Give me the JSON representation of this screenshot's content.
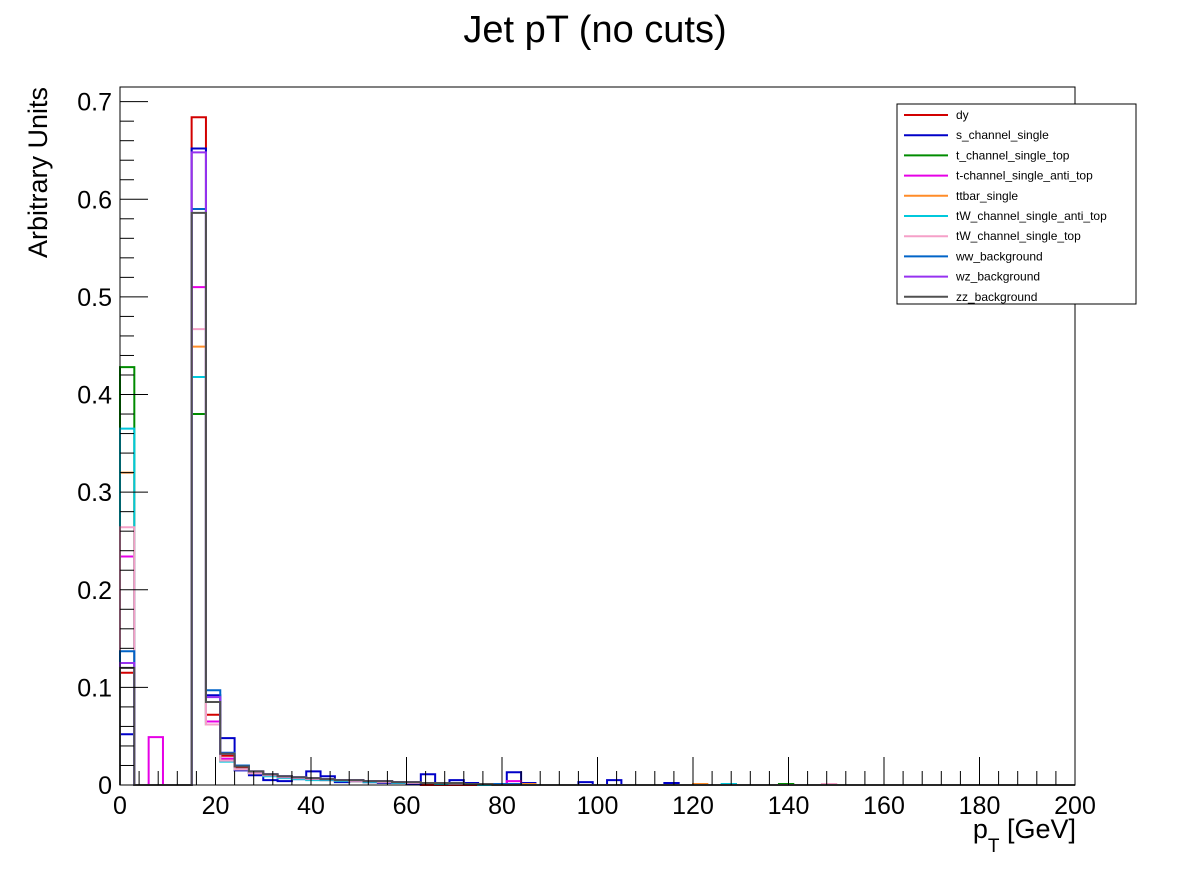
{
  "chart_data": {
    "type": "histogram",
    "title": "Jet pT (no cuts)",
    "ylabel": "Arbitrary Units",
    "xlabel": {
      "main": "p",
      "sub": "T",
      "unit": " [GeV]"
    },
    "xlim": [
      0,
      200
    ],
    "ylim": [
      0,
      0.715
    ],
    "bin_width": 3,
    "x_ticks": [
      0,
      20,
      40,
      60,
      80,
      100,
      120,
      140,
      160,
      180,
      200
    ],
    "x_tick_labels": [
      "0",
      "20",
      "40",
      "60",
      "80",
      "100",
      "120",
      "140",
      "160",
      "180",
      "200"
    ],
    "y_ticks": [
      0,
      0.1,
      0.2,
      0.3,
      0.4,
      0.5,
      0.6,
      0.7
    ],
    "y_tick_labels": [
      "0",
      "0.1",
      "0.2",
      "0.3",
      "0.4",
      "0.5",
      "0.6",
      "0.7"
    ],
    "legend_position": "top-right",
    "series": [
      {
        "name": "dy",
        "color": "#d20000",
        "bins": [
          [
            0,
            0.115
          ],
          [
            15,
            0.684
          ],
          [
            18,
            0.072
          ],
          [
            21,
            0.03
          ],
          [
            24,
            0.018
          ],
          [
            27,
            0.013
          ],
          [
            30,
            0.01
          ],
          [
            33,
            0.008
          ],
          [
            36,
            0.007
          ],
          [
            39,
            0.006
          ],
          [
            42,
            0.005
          ],
          [
            45,
            0.004
          ],
          [
            48,
            0.004
          ],
          [
            51,
            0.003
          ],
          [
            54,
            0.003
          ],
          [
            57,
            0.002
          ],
          [
            60,
            0.002
          ]
        ]
      },
      {
        "name": "s_channel_single",
        "color": "#0000c8",
        "bins": [
          [
            0,
            0.052
          ],
          [
            15,
            0.652
          ],
          [
            18,
            0.092
          ],
          [
            21,
            0.048
          ],
          [
            24,
            0.015
          ],
          [
            27,
            0.01
          ],
          [
            30,
            0.005
          ],
          [
            33,
            0.004
          ],
          [
            36,
            0.006
          ],
          [
            39,
            0.014
          ],
          [
            42,
            0.009
          ],
          [
            45,
            0.003
          ],
          [
            48,
            0.004
          ],
          [
            51,
            0.003
          ],
          [
            54,
            0.002
          ],
          [
            57,
            0.002
          ],
          [
            60,
            0.001
          ],
          [
            63,
            0.011
          ],
          [
            66,
            0.002
          ],
          [
            69,
            0.005
          ],
          [
            72,
            0.002
          ],
          [
            75,
            0.001
          ],
          [
            78,
            0.001
          ],
          [
            81,
            0.013
          ],
          [
            84,
            0.002
          ],
          [
            96,
            0.003
          ],
          [
            102,
            0.005
          ],
          [
            114,
            0.002
          ]
        ]
      },
      {
        "name": "t_channel_single_top",
        "color": "#008c00",
        "bins": [
          [
            0,
            0.428
          ],
          [
            15,
            0.38
          ],
          [
            18,
            0.062
          ],
          [
            21,
            0.025
          ],
          [
            24,
            0.016
          ],
          [
            27,
            0.012
          ],
          [
            30,
            0.01
          ],
          [
            33,
            0.008
          ],
          [
            36,
            0.007
          ],
          [
            39,
            0.006
          ],
          [
            42,
            0.006
          ],
          [
            45,
            0.005
          ],
          [
            48,
            0.004
          ],
          [
            51,
            0.004
          ],
          [
            54,
            0.003
          ],
          [
            57,
            0.003
          ],
          [
            60,
            0.002
          ],
          [
            63,
            0.002
          ],
          [
            66,
            0.002
          ],
          [
            69,
            0.001
          ],
          [
            72,
            0.001
          ],
          [
            75,
            0.001
          ],
          [
            138,
            0.001
          ]
        ]
      },
      {
        "name": "t-channel_single_anti_top",
        "color": "#e600e6",
        "bins": [
          [
            0,
            0.234
          ],
          [
            6,
            0.049
          ],
          [
            15,
            0.51
          ],
          [
            18,
            0.065
          ],
          [
            21,
            0.027
          ],
          [
            24,
            0.016
          ],
          [
            27,
            0.012
          ],
          [
            30,
            0.01
          ],
          [
            33,
            0.008
          ],
          [
            36,
            0.007
          ],
          [
            39,
            0.006
          ],
          [
            42,
            0.006
          ],
          [
            45,
            0.005
          ],
          [
            48,
            0.004
          ],
          [
            51,
            0.004
          ],
          [
            54,
            0.003
          ],
          [
            57,
            0.003
          ],
          [
            60,
            0.002
          ],
          [
            63,
            0.002
          ],
          [
            66,
            0.002
          ],
          [
            69,
            0.001
          ],
          [
            72,
            0.001
          ],
          [
            75,
            0.001
          ],
          [
            81,
            0.004
          ]
        ]
      },
      {
        "name": "ttbar_single",
        "color": "#ff8c28",
        "bins": [
          [
            0,
            0.32
          ],
          [
            15,
            0.449
          ],
          [
            18,
            0.062
          ],
          [
            21,
            0.025
          ],
          [
            24,
            0.016
          ],
          [
            27,
            0.012
          ],
          [
            30,
            0.01
          ],
          [
            33,
            0.008
          ],
          [
            36,
            0.007
          ],
          [
            39,
            0.006
          ],
          [
            42,
            0.006
          ],
          [
            45,
            0.005
          ],
          [
            48,
            0.004
          ],
          [
            51,
            0.004
          ],
          [
            54,
            0.003
          ],
          [
            57,
            0.003
          ],
          [
            60,
            0.002
          ],
          [
            63,
            0.002
          ],
          [
            66,
            0.002
          ],
          [
            69,
            0.001
          ],
          [
            72,
            0.001
          ],
          [
            75,
            0.001
          ],
          [
            84,
            0.001
          ],
          [
            120,
            0.001
          ]
        ]
      },
      {
        "name": "tW_channel_single_anti_top",
        "color": "#00c8dc",
        "bins": [
          [
            0,
            0.365
          ],
          [
            15,
            0.418
          ],
          [
            18,
            0.062
          ],
          [
            21,
            0.024
          ],
          [
            24,
            0.016
          ],
          [
            27,
            0.012
          ],
          [
            30,
            0.009
          ],
          [
            33,
            0.007
          ],
          [
            36,
            0.006
          ],
          [
            39,
            0.005
          ],
          [
            42,
            0.005
          ],
          [
            45,
            0.004
          ],
          [
            48,
            0.004
          ],
          [
            51,
            0.003
          ],
          [
            54,
            0.003
          ],
          [
            57,
            0.002
          ],
          [
            60,
            0.002
          ],
          [
            63,
            0.002
          ],
          [
            66,
            0.001
          ],
          [
            69,
            0.001
          ],
          [
            72,
            0.001
          ],
          [
            126,
            0.001
          ]
        ]
      },
      {
        "name": "tW_channel_single_top",
        "color": "#f5a0c8",
        "bins": [
          [
            0,
            0.264
          ],
          [
            15,
            0.467
          ],
          [
            18,
            0.062
          ],
          [
            21,
            0.025
          ],
          [
            24,
            0.016
          ],
          [
            27,
            0.012
          ],
          [
            30,
            0.01
          ],
          [
            33,
            0.008
          ],
          [
            36,
            0.007
          ],
          [
            39,
            0.006
          ],
          [
            42,
            0.006
          ],
          [
            45,
            0.005
          ],
          [
            48,
            0.004
          ],
          [
            51,
            0.004
          ],
          [
            54,
            0.003
          ],
          [
            57,
            0.003
          ],
          [
            60,
            0.002
          ],
          [
            63,
            0.002
          ],
          [
            66,
            0.002
          ],
          [
            69,
            0.001
          ],
          [
            72,
            0.001
          ],
          [
            75,
            0.001
          ],
          [
            147,
            0.001
          ]
        ]
      },
      {
        "name": "ww_background",
        "color": "#0064c8",
        "bins": [
          [
            0,
            0.137
          ],
          [
            15,
            0.59
          ],
          [
            18,
            0.097
          ],
          [
            21,
            0.033
          ],
          [
            24,
            0.02
          ],
          [
            27,
            0.014
          ],
          [
            30,
            0.011
          ],
          [
            33,
            0.009
          ],
          [
            36,
            0.008
          ],
          [
            39,
            0.007
          ],
          [
            42,
            0.006
          ],
          [
            45,
            0.005
          ],
          [
            48,
            0.005
          ],
          [
            51,
            0.004
          ],
          [
            54,
            0.004
          ],
          [
            57,
            0.003
          ],
          [
            60,
            0.003
          ],
          [
            63,
            0.002
          ],
          [
            66,
            0.002
          ],
          [
            69,
            0.002
          ],
          [
            72,
            0.001
          ],
          [
            75,
            0.001
          ],
          [
            78,
            0.001
          ],
          [
            81,
            0.001
          ]
        ]
      },
      {
        "name": "wz_background",
        "color": "#9632f0",
        "bins": [
          [
            0,
            0.125
          ],
          [
            15,
            0.648
          ],
          [
            18,
            0.09
          ],
          [
            21,
            0.032
          ],
          [
            24,
            0.019
          ],
          [
            27,
            0.014
          ],
          [
            30,
            0.011
          ],
          [
            33,
            0.009
          ],
          [
            36,
            0.008
          ],
          [
            39,
            0.007
          ],
          [
            42,
            0.006
          ],
          [
            45,
            0.005
          ],
          [
            48,
            0.005
          ],
          [
            51,
            0.004
          ],
          [
            54,
            0.004
          ],
          [
            57,
            0.003
          ],
          [
            60,
            0.003
          ],
          [
            63,
            0.002
          ],
          [
            66,
            0.002
          ],
          [
            69,
            0.002
          ],
          [
            72,
            0.001
          ],
          [
            75,
            0.001
          ]
        ]
      },
      {
        "name": "zz_background",
        "color": "#505050",
        "bins": [
          [
            0,
            0.12
          ],
          [
            15,
            0.586
          ],
          [
            18,
            0.085
          ],
          [
            21,
            0.032
          ],
          [
            24,
            0.019
          ],
          [
            27,
            0.014
          ],
          [
            30,
            0.011
          ],
          [
            33,
            0.009
          ],
          [
            36,
            0.008
          ],
          [
            39,
            0.007
          ],
          [
            42,
            0.006
          ],
          [
            45,
            0.005
          ],
          [
            48,
            0.005
          ],
          [
            51,
            0.004
          ],
          [
            54,
            0.004
          ],
          [
            57,
            0.003
          ],
          [
            60,
            0.003
          ],
          [
            63,
            0.002
          ],
          [
            66,
            0.002
          ],
          [
            69,
            0.002
          ],
          [
            72,
            0.001
          ],
          [
            75,
            0.001
          ]
        ]
      }
    ]
  }
}
